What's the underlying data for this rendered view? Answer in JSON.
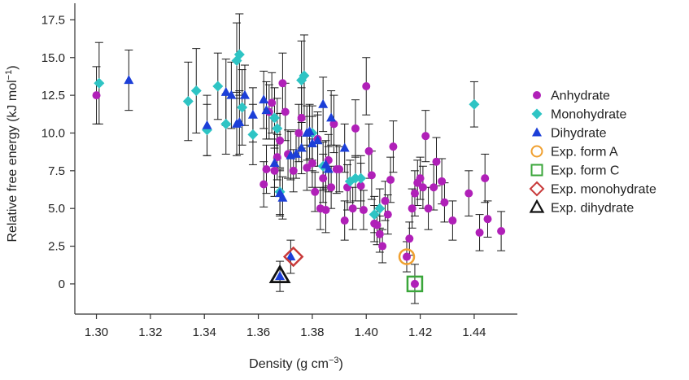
{
  "chart_data": {
    "type": "scatter",
    "title": "",
    "xlabel": "Density (g cm",
    "xlabel_sup": "−3",
    "xlabel_tail": ")",
    "ylabel": "Relative free energy (kJ mol",
    "ylabel_sup": "−1",
    "ylabel_tail": ")",
    "xlim": [
      1.292,
      1.456
    ],
    "ylim": [
      -2.0,
      18.6
    ],
    "xticks": [
      "1.30",
      "1.32",
      "1.34",
      "1.36",
      "1.38",
      "1.40",
      "1.42",
      "1.44"
    ],
    "xtick_values": [
      1.3,
      1.32,
      1.34,
      1.36,
      1.38,
      1.4,
      1.42,
      1.44
    ],
    "yticks": [
      "0",
      "2.5",
      "5.0",
      "7.5",
      "10.0",
      "12.5",
      "15.0",
      "17.5"
    ],
    "ytick_values": [
      0,
      2.5,
      5.0,
      7.5,
      10.0,
      12.5,
      15.0,
      17.5
    ],
    "grid": false,
    "legend_position": "right",
    "colors": {
      "anhydrate": "#b020b8",
      "monohydrate": "#2ec4c4",
      "dihydrate": "#1c3fd8",
      "exp_form_a": "#f0a030",
      "exp_form_c": "#3aa63a",
      "exp_monohydrate": "#c83a3a",
      "exp_dihydrate": "#111111",
      "errorbar": "#1a1a1a"
    },
    "legend": [
      {
        "label": "Anhydrate",
        "series": "anhydrate"
      },
      {
        "label": "Monohydrate",
        "series": "monohydrate"
      },
      {
        "label": "Dihydrate",
        "series": "dihydrate"
      },
      {
        "label": "Exp. form A",
        "series": "exp_form_a"
      },
      {
        "label": "Exp. form C",
        "series": "exp_form_c"
      },
      {
        "label": "Exp. monohydrate",
        "series": "exp_monohydrate"
      },
      {
        "label": "Exp. dihydrate",
        "series": "exp_dihydrate"
      }
    ],
    "series": [
      {
        "name": "Anhydrate",
        "id": "anhydrate",
        "marker": "circle",
        "points": [
          [
            1.3,
            12.5,
            1.9
          ],
          [
            1.362,
            6.6,
            1.5
          ],
          [
            1.363,
            7.6,
            1.6
          ],
          [
            1.364,
            11.4,
            1.8
          ],
          [
            1.365,
            12.0,
            2.0
          ],
          [
            1.366,
            7.5,
            1.7
          ],
          [
            1.367,
            8.4,
            1.5
          ],
          [
            1.368,
            9.5,
            1.8
          ],
          [
            1.369,
            13.3,
            2.0
          ],
          [
            1.37,
            11.4,
            1.9
          ],
          [
            1.371,
            8.6,
            1.6
          ],
          [
            1.373,
            7.5,
            1.4
          ],
          [
            1.375,
            10.0,
            1.9
          ],
          [
            1.376,
            11.0,
            2.0
          ],
          [
            1.378,
            7.7,
            1.5
          ],
          [
            1.38,
            8.0,
            1.6
          ],
          [
            1.381,
            6.1,
            1.3
          ],
          [
            1.382,
            9.6,
            1.8
          ],
          [
            1.383,
            5.0,
            1.4
          ],
          [
            1.384,
            7.0,
            1.6
          ],
          [
            1.385,
            4.9,
            1.5
          ],
          [
            1.386,
            8.2,
            1.7
          ],
          [
            1.387,
            6.4,
            1.4
          ],
          [
            1.388,
            10.6,
            1.9
          ],
          [
            1.389,
            7.6,
            1.6
          ],
          [
            1.39,
            7.6,
            1.5
          ],
          [
            1.392,
            4.2,
            1.3
          ],
          [
            1.393,
            6.4,
            1.5
          ],
          [
            1.395,
            5.0,
            1.4
          ],
          [
            1.396,
            10.3,
            1.9
          ],
          [
            1.398,
            6.5,
            1.5
          ],
          [
            1.399,
            4.9,
            1.3
          ],
          [
            1.4,
            13.1,
            1.9
          ],
          [
            1.401,
            8.8,
            1.8
          ],
          [
            1.402,
            7.2,
            1.6
          ],
          [
            1.403,
            4.0,
            1.2
          ],
          [
            1.404,
            3.9,
            1.3
          ],
          [
            1.405,
            3.3,
            1.2
          ],
          [
            1.406,
            2.5,
            1.1
          ],
          [
            1.407,
            5.5,
            1.3
          ],
          [
            1.408,
            4.6,
            1.3
          ],
          [
            1.409,
            6.9,
            1.5
          ],
          [
            1.41,
            9.1,
            1.7
          ],
          [
            1.416,
            3.0,
            1.1
          ],
          [
            1.417,
            5.0,
            1.3
          ],
          [
            1.418,
            6.0,
            1.5
          ],
          [
            1.419,
            6.7,
            1.5
          ],
          [
            1.42,
            7.0,
            1.4
          ],
          [
            1.421,
            6.4,
            1.4
          ],
          [
            1.422,
            9.8,
            1.7
          ],
          [
            1.423,
            5.0,
            1.4
          ],
          [
            1.425,
            6.4,
            1.5
          ],
          [
            1.426,
            8.1,
            1.6
          ],
          [
            1.428,
            6.8,
            1.5
          ],
          [
            1.429,
            5.4,
            1.3
          ],
          [
            1.432,
            4.2,
            1.3
          ],
          [
            1.438,
            6.0,
            1.5
          ],
          [
            1.442,
            3.4,
            1.2
          ],
          [
            1.444,
            7.0,
            1.6
          ],
          [
            1.445,
            4.3,
            1.2
          ],
          [
            1.45,
            3.5,
            1.3
          ],
          [
            1.415,
            1.8,
            1.0
          ],
          [
            1.418,
            0.0,
            1.3
          ]
        ]
      },
      {
        "name": "Monohydrate",
        "id": "monohydrate",
        "marker": "diamond",
        "points": [
          [
            1.301,
            13.3,
            2.7
          ],
          [
            1.334,
            12.1,
            2.6
          ],
          [
            1.337,
            12.8,
            2.8
          ],
          [
            1.341,
            10.2,
            1.7
          ],
          [
            1.345,
            13.1,
            2.2
          ],
          [
            1.348,
            10.6,
            2.0
          ],
          [
            1.352,
            14.8,
            2.5
          ],
          [
            1.353,
            15.2,
            2.7
          ],
          [
            1.354,
            11.7,
            2.5
          ],
          [
            1.358,
            9.9,
            2.0
          ],
          [
            1.366,
            11.0,
            2.0
          ],
          [
            1.367,
            10.3,
            2.0
          ],
          [
            1.368,
            6.1,
            1.5
          ],
          [
            1.376,
            13.5,
            2.6
          ],
          [
            1.377,
            13.8,
            2.7
          ],
          [
            1.38,
            10.0,
            1.8
          ],
          [
            1.384,
            7.8,
            1.6
          ],
          [
            1.394,
            6.8,
            1.4
          ],
          [
            1.396,
            7.0,
            1.5
          ],
          [
            1.398,
            7.0,
            1.5
          ],
          [
            1.403,
            4.6,
            1.2
          ],
          [
            1.405,
            5.0,
            1.3
          ],
          [
            1.44,
            11.9,
            1.5
          ]
        ]
      },
      {
        "name": "Dihydrate",
        "id": "dihydrate",
        "marker": "triangle",
        "points": [
          [
            1.312,
            13.5,
            2.0
          ],
          [
            1.341,
            10.5,
            2.0
          ],
          [
            1.348,
            12.7,
            2.2
          ],
          [
            1.35,
            12.5,
            2.2
          ],
          [
            1.352,
            10.6,
            2.1
          ],
          [
            1.353,
            10.7,
            2.1
          ],
          [
            1.355,
            12.5,
            2.0
          ],
          [
            1.358,
            11.2,
            1.8
          ],
          [
            1.362,
            12.2,
            1.9
          ],
          [
            1.363,
            11.5,
            1.9
          ],
          [
            1.366,
            8.0,
            1.6
          ],
          [
            1.368,
            6.0,
            1.5
          ],
          [
            1.369,
            5.7,
            1.4
          ],
          [
            1.372,
            8.5,
            1.6
          ],
          [
            1.374,
            8.6,
            1.6
          ],
          [
            1.376,
            9.0,
            1.7
          ],
          [
            1.378,
            10.0,
            1.8
          ],
          [
            1.379,
            10.1,
            1.8
          ],
          [
            1.38,
            9.3,
            1.8
          ],
          [
            1.382,
            9.5,
            1.7
          ],
          [
            1.384,
            11.9,
            1.8
          ],
          [
            1.385,
            7.9,
            1.6
          ],
          [
            1.386,
            7.6,
            1.5
          ],
          [
            1.387,
            11.0,
            1.8
          ],
          [
            1.392,
            9.0,
            1.6
          ],
          [
            1.372,
            1.8,
            1.1
          ],
          [
            1.368,
            0.5,
            1.0
          ]
        ]
      },
      {
        "name": "Exp. form A",
        "id": "exp_form_a",
        "marker": "open-circle",
        "points": [
          [
            1.415,
            1.8
          ]
        ]
      },
      {
        "name": "Exp. form C",
        "id": "exp_form_c",
        "marker": "open-square",
        "points": [
          [
            1.418,
            0.0
          ]
        ]
      },
      {
        "name": "Exp. monohydrate",
        "id": "exp_monohydrate",
        "marker": "open-diamond",
        "points": [
          [
            1.373,
            1.8
          ]
        ]
      },
      {
        "name": "Exp. dihydrate",
        "id": "exp_dihydrate",
        "marker": "open-triangle",
        "points": [
          [
            1.368,
            0.5
          ]
        ]
      }
    ]
  }
}
